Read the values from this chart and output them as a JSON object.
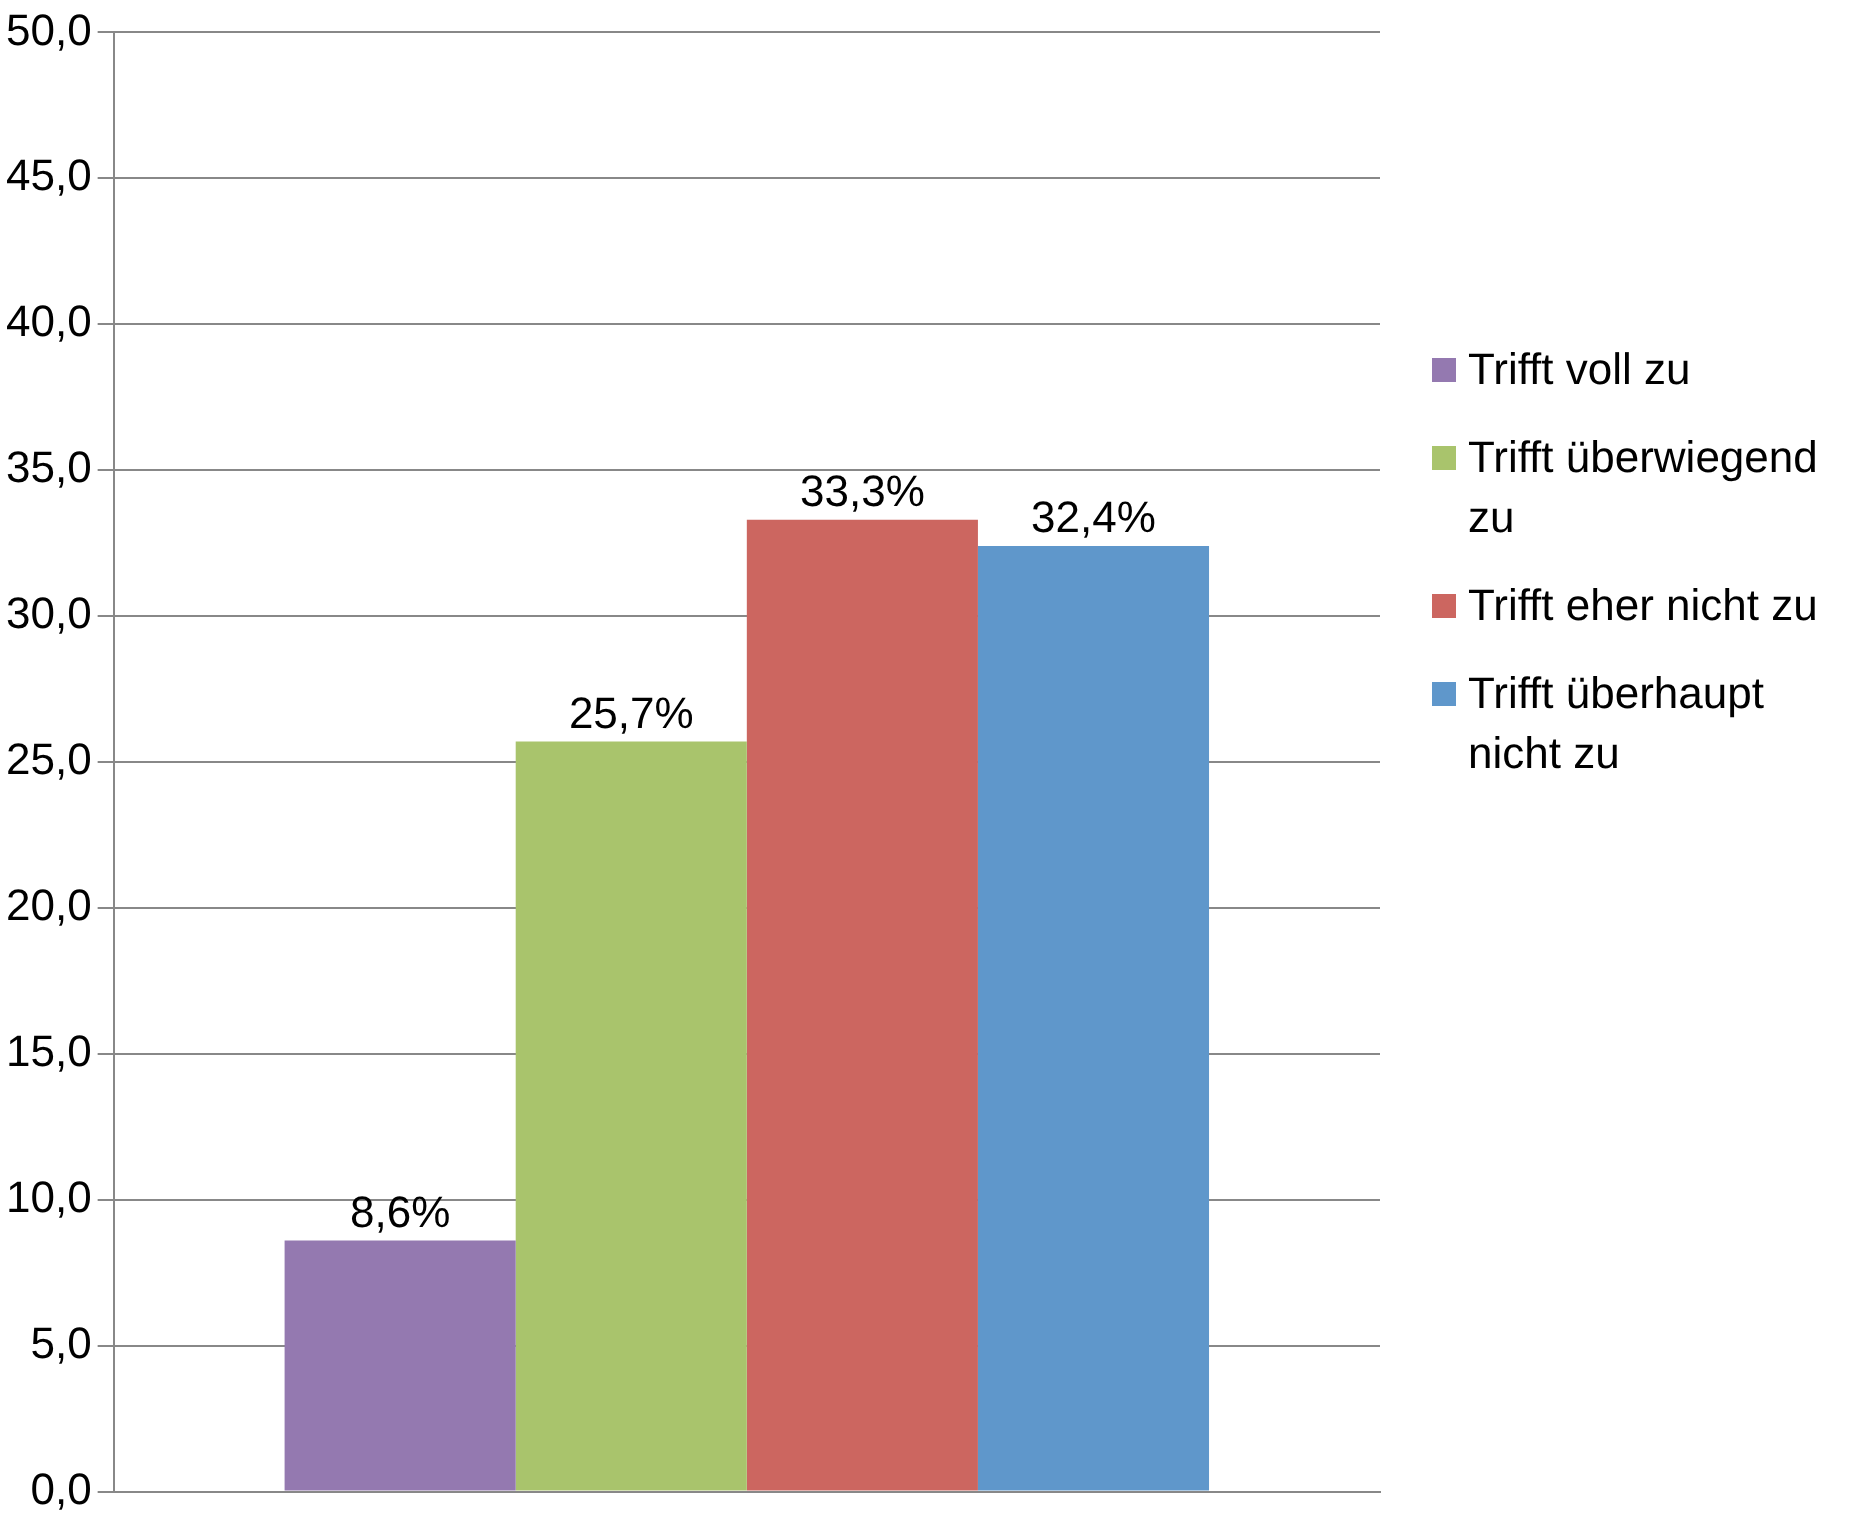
{
  "chart_data": {
    "type": "bar",
    "categories": [
      null
    ],
    "series": [
      {
        "name": "Trifft voll zu",
        "color": "#9479b0",
        "values": [
          8.6
        ],
        "value_labels": [
          "8,6%"
        ]
      },
      {
        "name": "Trifft überwiegend zu",
        "color": "#a9c46c",
        "values": [
          25.7
        ],
        "value_labels": [
          "25,7%"
        ]
      },
      {
        "name": "Trifft eher nicht zu",
        "color": "#cc6660",
        "values": [
          33.3
        ],
        "value_labels": [
          "33,3%"
        ]
      },
      {
        "name": "Trifft überhaupt nicht zu",
        "color": "#5f97cb",
        "values": [
          32.4
        ],
        "value_labels": [
          "32,4%"
        ]
      }
    ],
    "ylim": [
      0,
      50
    ],
    "yticks": [
      {
        "value": 0,
        "label": "0,0"
      },
      {
        "value": 5,
        "label": "5,0"
      },
      {
        "value": 10,
        "label": "10,0"
      },
      {
        "value": 15,
        "label": "15,0"
      },
      {
        "value": 20,
        "label": "20,0"
      },
      {
        "value": 25,
        "label": "25,0"
      },
      {
        "value": 30,
        "label": "30,0"
      },
      {
        "value": 35,
        "label": "35,0"
      },
      {
        "value": 40,
        "label": "40,0"
      },
      {
        "value": 45,
        "label": "45,0"
      },
      {
        "value": 50,
        "label": "50,0"
      }
    ],
    "grid": "y",
    "legend": "right"
  }
}
